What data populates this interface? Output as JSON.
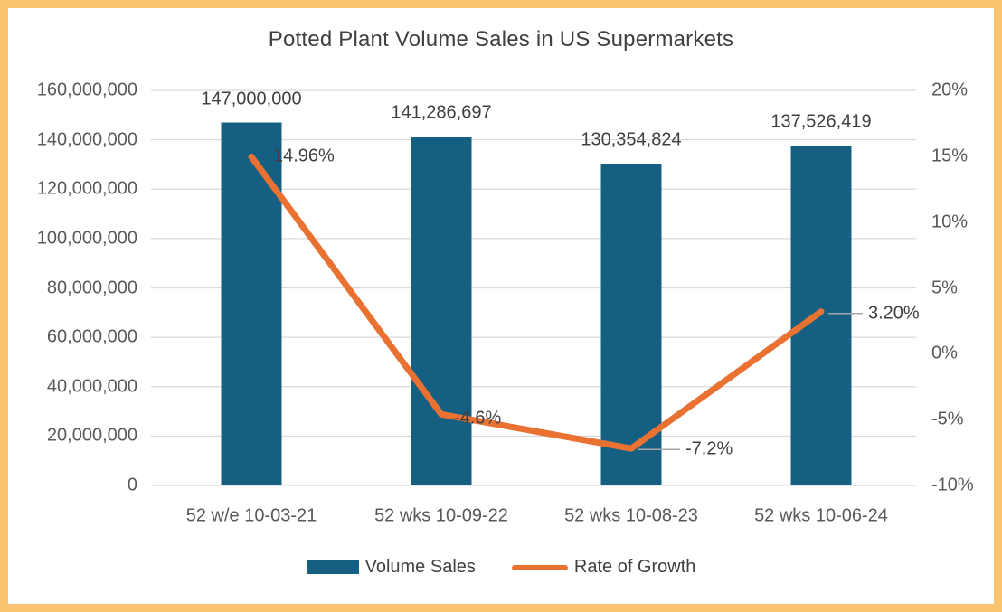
{
  "colors": {
    "bar": "#156082",
    "line": "#E97132",
    "border": "#FBC470",
    "grid": "#D9D9D9",
    "axis_text": "#595959",
    "label_text": "#404040",
    "leader": "#A6A6A6",
    "background": "#FFFFFF"
  },
  "chart_data": {
    "type": "combo",
    "title": "Potted Plant Volume Sales in US Supermarkets",
    "categories": [
      "52 w/e 10-03-21",
      "52 wks 10-09-22",
      "52 wks 10-08-23",
      "52 wks 10-06-24"
    ],
    "series": [
      {
        "name": "Volume Sales",
        "type": "bar",
        "axis": "left",
        "values": [
          147000000,
          141286697,
          130354824,
          137526419
        ],
        "labels": [
          "147,000,000",
          "141,286,697",
          "130,354,824",
          "137,526,419"
        ]
      },
      {
        "name": "Rate of Growth",
        "type": "line",
        "axis": "right",
        "values": [
          14.96,
          -4.6,
          -7.2,
          3.2
        ],
        "labels": [
          "14.96%",
          "-4.6%",
          "-7.2%",
          "3.20%"
        ]
      }
    ],
    "left_axis": {
      "min": 0,
      "max": 160000000,
      "tick_labels": [
        "160,000,000",
        "140,000,000",
        "120,000,000",
        "100,000,000",
        "80,000,000",
        "60,000,000",
        "40,000,000",
        "20,000,000",
        "0"
      ]
    },
    "right_axis": {
      "min": -10,
      "max": 20,
      "tick_labels": [
        "20%",
        "15%",
        "10%",
        "5%",
        "0%",
        "-5%",
        "-10%"
      ]
    },
    "legend": [
      "Volume Sales",
      "Rate of Growth"
    ],
    "legend_position": "bottom",
    "grid": true
  }
}
